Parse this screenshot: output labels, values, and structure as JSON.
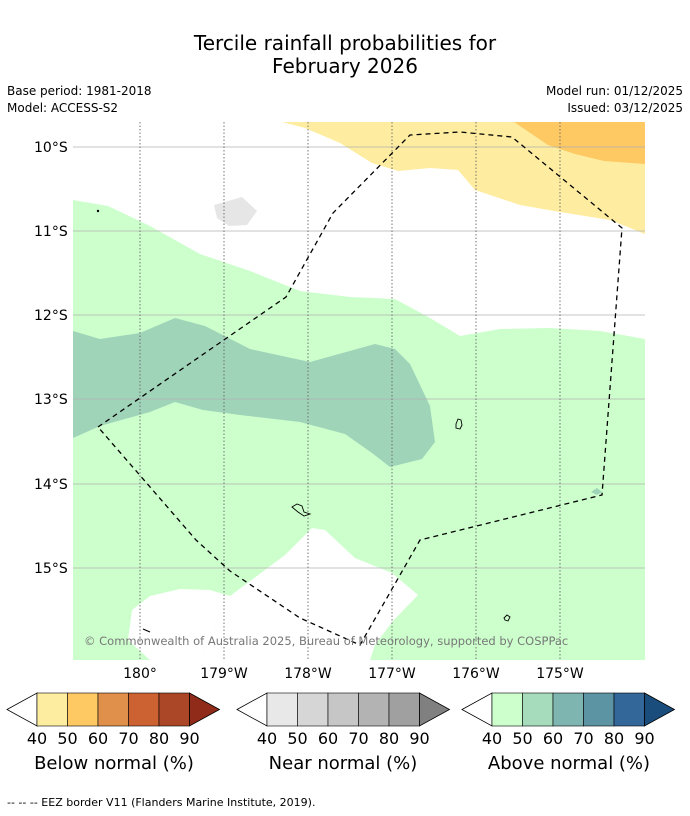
{
  "title": {
    "line1": "Tercile rainfall probabilities for",
    "line2": "February 2026"
  },
  "meta": {
    "base_period": "Base period: 1981-2018",
    "model": "Model: ACCESS-S2",
    "model_run": "Model run: 01/12/2025",
    "issued": "Issued: 03/12/2025"
  },
  "map": {
    "lat_labels": [
      "10°S",
      "11°S",
      "12°S",
      "13°S",
      "14°S",
      "15°S"
    ],
    "lon_labels": [
      "180°",
      "179°W",
      "178°W",
      "177°W",
      "176°W",
      "175°W"
    ],
    "copyright": "© Commonwealth of Australia 2025, Bureau of Meteorology, supported by COSPPac"
  },
  "legends": [
    {
      "caption": "Below normal (%)",
      "ticks": [
        "40",
        "50",
        "60",
        "70",
        "80",
        "90"
      ],
      "colors": [
        "#fdeda0",
        "#fec863",
        "#e0904a",
        "#cc6232",
        "#ab4626",
        "#8f2b18"
      ]
    },
    {
      "caption": "Near normal (%)",
      "ticks": [
        "40",
        "50",
        "60",
        "70",
        "80",
        "90"
      ],
      "colors": [
        "#e8e8e8",
        "#d6d6d6",
        "#c6c6c6",
        "#b3b3b3",
        "#a0a0a0",
        "#808080"
      ]
    },
    {
      "caption": "Above normal (%)",
      "ticks": [
        "40",
        "50",
        "60",
        "70",
        "80",
        "90"
      ],
      "colors": [
        "#ccffcc",
        "#a6dcbc",
        "#7fb5b0",
        "#5c94a4",
        "#336699",
        "#1a4c7c"
      ]
    }
  ],
  "footnote": "--  --  -- EEZ border V11 (Flanders Marine Institute, 2019)."
}
